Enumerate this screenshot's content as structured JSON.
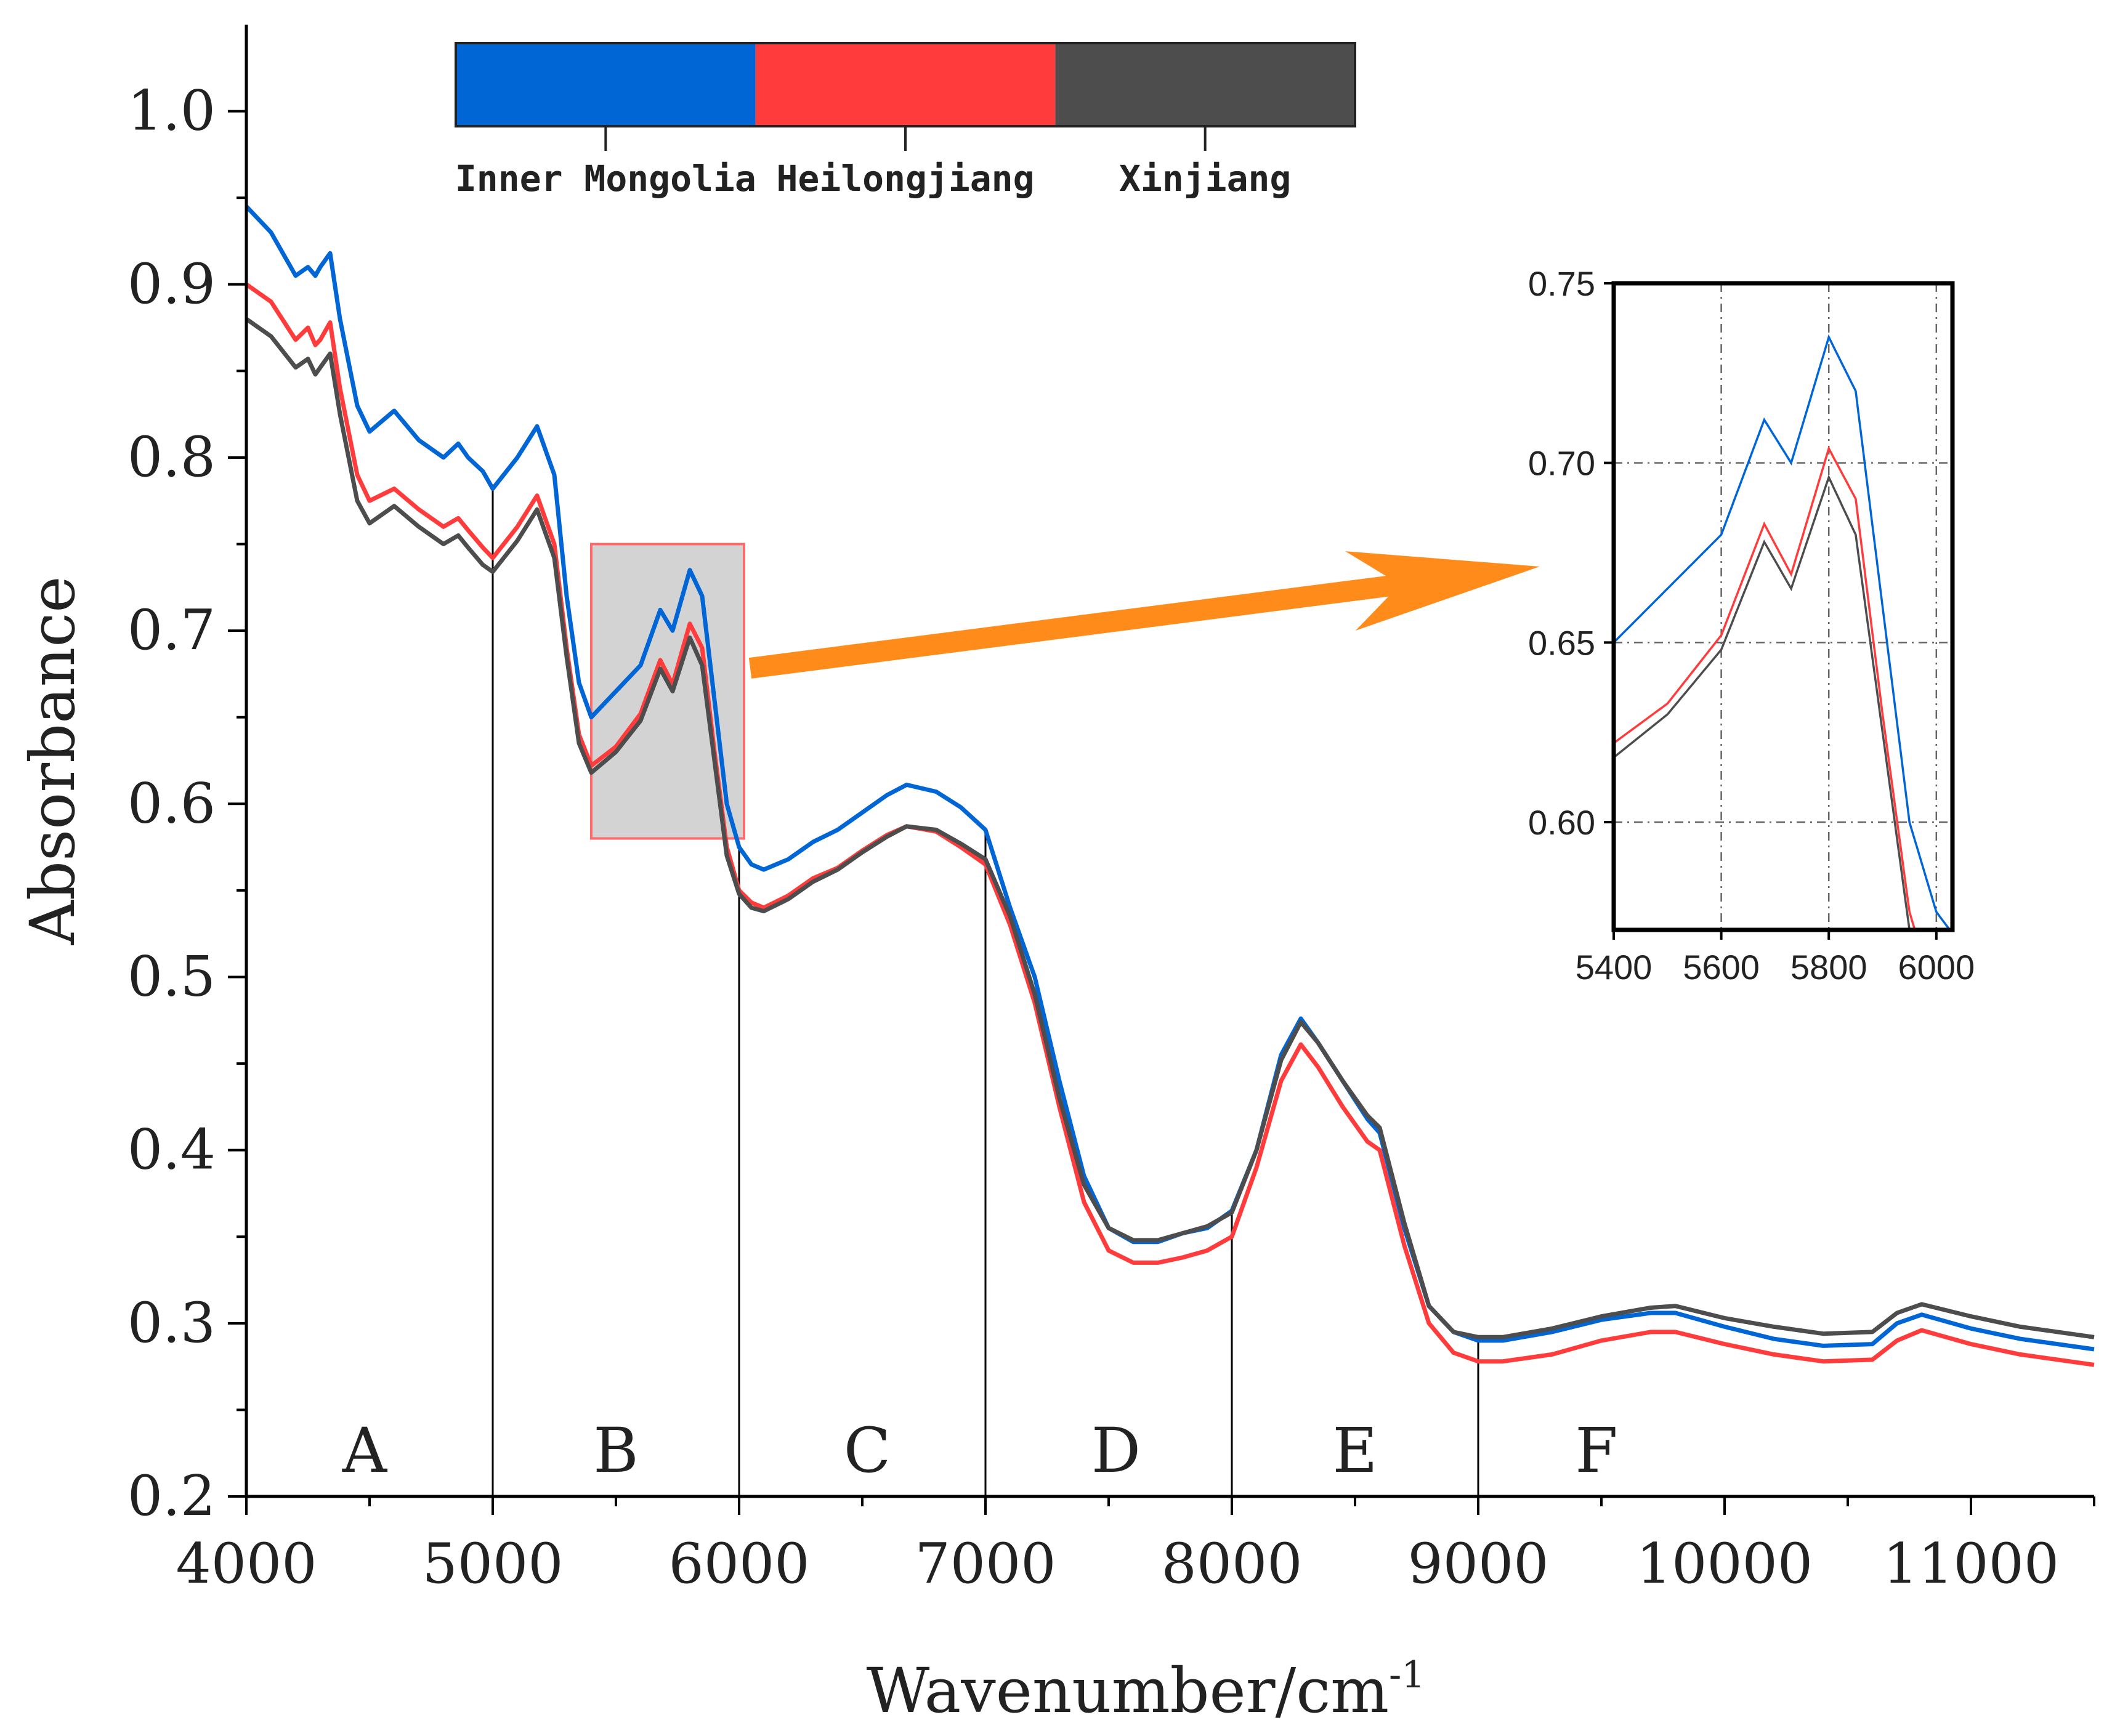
{
  "chart_data": {
    "type": "line",
    "title": "",
    "xlabel": "Wavenumber/cm",
    "xlabel_superscript": "-1",
    "ylabel": "Absorbance",
    "xlim": [
      4000,
      11500
    ],
    "ylim": [
      0.2,
      1.05
    ],
    "x_ticks": [
      4000,
      5000,
      6000,
      7000,
      8000,
      9000,
      10000,
      11000
    ],
    "y_ticks": [
      0.2,
      0.3,
      0.4,
      0.5,
      0.6,
      0.7,
      0.8,
      0.9,
      1.0
    ],
    "x_tick_labels": [
      "4000",
      "5000",
      "6000",
      "7000",
      "8000",
      "9000",
      "10000",
      "11000"
    ],
    "y_tick_labels": [
      "0.2",
      "0.3",
      "0.4",
      "0.5",
      "0.6",
      "0.7",
      "0.8",
      "0.9",
      "1.0"
    ],
    "region_dividers": [
      5000,
      6000,
      7000,
      8000,
      9000
    ],
    "regions": [
      {
        "label": "A",
        "x": 4480
      },
      {
        "label": "B",
        "x": 5500
      },
      {
        "label": "C",
        "x": 6520
      },
      {
        "label": "D",
        "x": 7530
      },
      {
        "label": "E",
        "x": 8500
      },
      {
        "label": "F",
        "x": 9480
      }
    ],
    "legend": {
      "placement": "top",
      "entries": [
        {
          "name": "Inner Mongolia",
          "color": "#0066d6"
        },
        {
          "name": "Heilongjiang",
          "color": "#ff3b3b"
        },
        {
          "name": "Xinjiang",
          "color": "#4d4d4d"
        }
      ]
    },
    "highlight_box": {
      "x_range": [
        5400,
        6020
      ],
      "y_range": [
        0.58,
        0.75
      ]
    },
    "series": [
      {
        "name": "Inner Mongolia",
        "color": "#0066d6",
        "x": [
          4000,
          4100,
          4200,
          4250,
          4280,
          4300,
          4340,
          4380,
          4450,
          4500,
          4600,
          4700,
          4800,
          4860,
          4900,
          4960,
          5000,
          5100,
          5180,
          5250,
          5300,
          5350,
          5400,
          5500,
          5600,
          5680,
          5730,
          5800,
          5850,
          5900,
          5950,
          6000,
          6050,
          6100,
          6200,
          6300,
          6400,
          6500,
          6600,
          6680,
          6800,
          6900,
          7000,
          7100,
          7200,
          7300,
          7400,
          7500,
          7600,
          7700,
          7800,
          7900,
          8000,
          8100,
          8200,
          8280,
          8350,
          8450,
          8550,
          8600,
          8700,
          8800,
          8900,
          9000,
          9100,
          9300,
          9500,
          9700,
          9800,
          10000,
          10200,
          10400,
          10600,
          10700,
          10800,
          11000,
          11200,
          11500
        ],
        "y": [
          0.945,
          0.93,
          0.905,
          0.91,
          0.905,
          0.91,
          0.918,
          0.88,
          0.83,
          0.815,
          0.827,
          0.81,
          0.8,
          0.808,
          0.8,
          0.792,
          0.782,
          0.8,
          0.818,
          0.79,
          0.72,
          0.67,
          0.65,
          0.665,
          0.68,
          0.712,
          0.7,
          0.735,
          0.72,
          0.66,
          0.6,
          0.575,
          0.565,
          0.562,
          0.568,
          0.578,
          0.585,
          0.595,
          0.605,
          0.611,
          0.607,
          0.598,
          0.585,
          0.54,
          0.5,
          0.44,
          0.385,
          0.355,
          0.347,
          0.347,
          0.352,
          0.355,
          0.365,
          0.4,
          0.455,
          0.476,
          0.462,
          0.44,
          0.418,
          0.41,
          0.355,
          0.31,
          0.295,
          0.29,
          0.29,
          0.295,
          0.302,
          0.306,
          0.306,
          0.298,
          0.291,
          0.287,
          0.288,
          0.3,
          0.305,
          0.297,
          0.291,
          0.285
        ]
      },
      {
        "name": "Heilongjiang",
        "color": "#ff3b3b",
        "x": [
          4000,
          4100,
          4200,
          4250,
          4280,
          4300,
          4340,
          4380,
          4450,
          4500,
          4600,
          4700,
          4800,
          4860,
          4900,
          4960,
          5000,
          5100,
          5180,
          5250,
          5300,
          5350,
          5400,
          5500,
          5600,
          5680,
          5730,
          5800,
          5850,
          5900,
          5950,
          6000,
          6050,
          6100,
          6200,
          6300,
          6400,
          6500,
          6600,
          6680,
          6800,
          6900,
          7000,
          7100,
          7200,
          7300,
          7400,
          7500,
          7600,
          7700,
          7800,
          7900,
          8000,
          8100,
          8200,
          8280,
          8350,
          8450,
          8550,
          8600,
          8700,
          8800,
          8900,
          9000,
          9100,
          9300,
          9500,
          9700,
          9800,
          10000,
          10200,
          10400,
          10600,
          10700,
          10800,
          11000,
          11200,
          11500
        ],
        "y": [
          0.9,
          0.89,
          0.868,
          0.875,
          0.865,
          0.868,
          0.878,
          0.84,
          0.79,
          0.775,
          0.782,
          0.77,
          0.76,
          0.765,
          0.758,
          0.748,
          0.742,
          0.76,
          0.778,
          0.75,
          0.69,
          0.64,
          0.622,
          0.633,
          0.652,
          0.683,
          0.669,
          0.704,
          0.69,
          0.63,
          0.575,
          0.55,
          0.543,
          0.54,
          0.547,
          0.557,
          0.563,
          0.573,
          0.582,
          0.587,
          0.584,
          0.575,
          0.565,
          0.53,
          0.485,
          0.425,
          0.37,
          0.342,
          0.335,
          0.335,
          0.338,
          0.342,
          0.35,
          0.39,
          0.44,
          0.461,
          0.448,
          0.425,
          0.405,
          0.4,
          0.345,
          0.3,
          0.283,
          0.278,
          0.278,
          0.282,
          0.29,
          0.295,
          0.295,
          0.288,
          0.282,
          0.278,
          0.279,
          0.29,
          0.296,
          0.288,
          0.282,
          0.276
        ]
      },
      {
        "name": "Xinjiang",
        "color": "#4d4d4d",
        "x": [
          4000,
          4100,
          4200,
          4250,
          4280,
          4300,
          4340,
          4380,
          4450,
          4500,
          4600,
          4700,
          4800,
          4860,
          4900,
          4960,
          5000,
          5100,
          5180,
          5250,
          5300,
          5350,
          5400,
          5500,
          5600,
          5680,
          5730,
          5800,
          5850,
          5900,
          5950,
          6000,
          6050,
          6100,
          6200,
          6300,
          6400,
          6500,
          6600,
          6680,
          6800,
          6900,
          7000,
          7100,
          7200,
          7300,
          7400,
          7500,
          7600,
          7700,
          7800,
          7900,
          8000,
          8100,
          8200,
          8280,
          8350,
          8450,
          8550,
          8600,
          8700,
          8800,
          8900,
          9000,
          9100,
          9300,
          9500,
          9700,
          9800,
          10000,
          10200,
          10400,
          10600,
          10700,
          10800,
          11000,
          11200,
          11500
        ],
        "y": [
          0.88,
          0.87,
          0.852,
          0.857,
          0.848,
          0.852,
          0.86,
          0.825,
          0.775,
          0.762,
          0.772,
          0.76,
          0.75,
          0.755,
          0.748,
          0.738,
          0.734,
          0.752,
          0.77,
          0.742,
          0.685,
          0.635,
          0.618,
          0.63,
          0.648,
          0.678,
          0.665,
          0.696,
          0.68,
          0.625,
          0.57,
          0.548,
          0.54,
          0.538,
          0.545,
          0.555,
          0.562,
          0.572,
          0.581,
          0.587,
          0.585,
          0.577,
          0.568,
          0.535,
          0.49,
          0.43,
          0.38,
          0.355,
          0.348,
          0.348,
          0.352,
          0.356,
          0.364,
          0.4,
          0.452,
          0.474,
          0.462,
          0.44,
          0.42,
          0.413,
          0.358,
          0.31,
          0.295,
          0.292,
          0.292,
          0.297,
          0.304,
          0.309,
          0.31,
          0.303,
          0.298,
          0.294,
          0.295,
          0.306,
          0.311,
          0.304,
          0.298,
          0.292
        ]
      }
    ],
    "inset": {
      "xlim": [
        5400,
        6030
      ],
      "ylim": [
        0.57,
        0.75
      ],
      "x_ticks": [
        5400,
        5600,
        5800,
        6000
      ],
      "y_ticks": [
        0.6,
        0.65,
        0.7,
        0.75
      ],
      "x_tick_labels": [
        "5400",
        "5600",
        "5800",
        "6000"
      ],
      "y_tick_labels": [
        "0.60",
        "0.65",
        "0.70",
        "0.75"
      ],
      "grid_x": [
        5600,
        5800,
        6000
      ],
      "grid_y": [
        0.6,
        0.65,
        0.7
      ]
    },
    "annotation": {
      "type": "arrow",
      "text": "",
      "color": "#ff8c1a",
      "from": "highlight_box",
      "to": "inset"
    }
  }
}
